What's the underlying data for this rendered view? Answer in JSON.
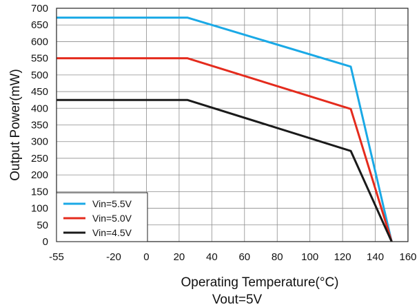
{
  "chart_data": {
    "type": "line",
    "xlabel": "Operating Temperature(°C)",
    "subtitle": "Vout=5V",
    "ylabel": "Output Power(mW)",
    "xlim": [
      -55,
      160
    ],
    "ylim": [
      0,
      700
    ],
    "x_ticks": [
      -55,
      -20,
      0,
      20,
      40,
      60,
      80,
      100,
      120,
      140,
      160
    ],
    "y_ticks": [
      0,
      50,
      100,
      150,
      200,
      250,
      300,
      350,
      400,
      450,
      500,
      550,
      600,
      650,
      700
    ],
    "grid": true,
    "legend_position": "bottom-left",
    "series": [
      {
        "name": "Vin=5.5V",
        "color": "#1aa9e6",
        "x": [
          -55,
          25,
          125,
          150
        ],
        "y": [
          672,
          672,
          525,
          0
        ]
      },
      {
        "name": "Vin=5.0V",
        "color": "#e42b1d",
        "x": [
          -55,
          25,
          125,
          150
        ],
        "y": [
          550,
          550,
          398,
          0
        ]
      },
      {
        "name": "Vin=4.5V",
        "color": "#1a1a1a",
        "x": [
          -55,
          25,
          125,
          150
        ],
        "y": [
          425,
          425,
          272,
          0
        ]
      }
    ]
  }
}
